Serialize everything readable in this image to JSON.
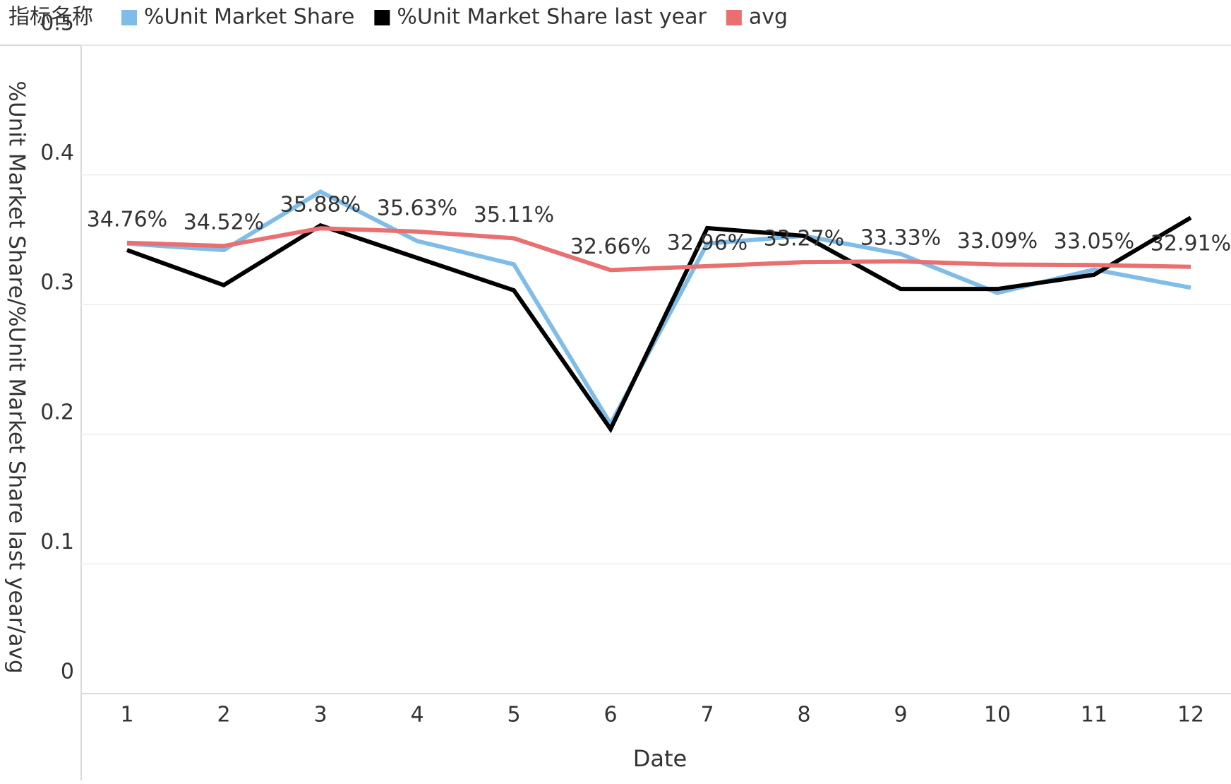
{
  "chart_data": {
    "type": "line",
    "legend_title": "指标名称",
    "x_label": "Date",
    "y_label": "%Unit Market Share/%Unit Market Share last year/avg",
    "categories": [
      "1",
      "2",
      "3",
      "4",
      "5",
      "6",
      "7",
      "8",
      "9",
      "10",
      "11",
      "12"
    ],
    "series": [
      {
        "name": "%Unit Market Share",
        "color": "#7fbde8",
        "values": [
          0.347,
          0.342,
          0.387,
          0.349,
          0.331,
          0.208,
          0.347,
          0.353,
          0.339,
          0.309,
          0.327,
          0.313
        ]
      },
      {
        "name": "%Unit Market Share last year",
        "color": "#000000",
        "values": [
          0.342,
          0.315,
          0.361,
          0.336,
          0.311,
          0.204,
          0.359,
          0.353,
          0.312,
          0.312,
          0.323,
          0.367
        ]
      },
      {
        "name": "avg",
        "color": "#e87070",
        "values": [
          0.3476,
          0.3452,
          0.3588,
          0.3563,
          0.3511,
          0.3266,
          0.3296,
          0.3327,
          0.3333,
          0.3309,
          0.3305,
          0.3291
        ],
        "value_labels": [
          "34.76%",
          "34.52%",
          "35.88%",
          "35.63%",
          "35.11%",
          "32.66%",
          "32.96%",
          "33.27%",
          "33.33%",
          "33.09%",
          "33.05%",
          "32.91%"
        ]
      }
    ],
    "ylim": [
      0,
      0.5
    ],
    "yticks": [
      0,
      0.1,
      0.2,
      0.3,
      0.4,
      0.5
    ],
    "grid": true,
    "legend": "top-left"
  }
}
